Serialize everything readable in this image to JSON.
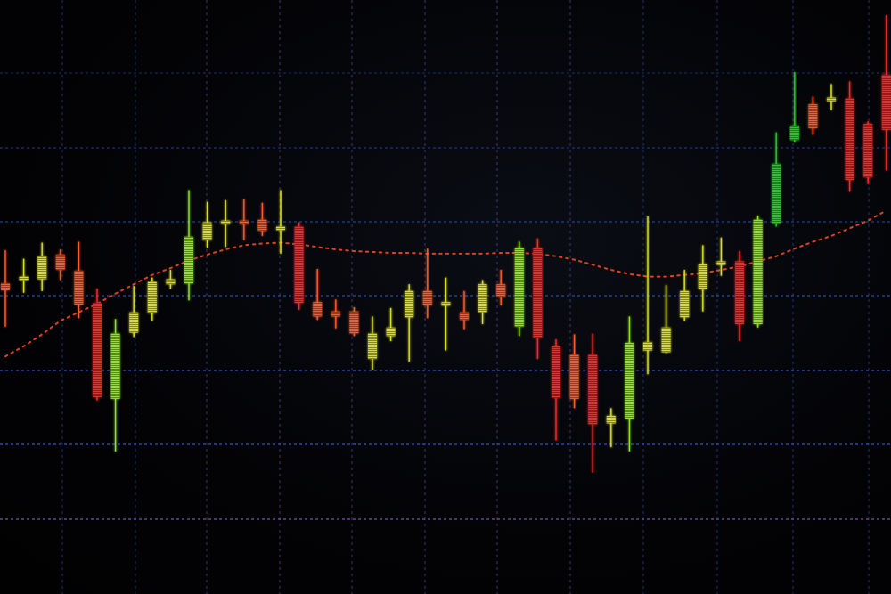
{
  "chart_data": {
    "type": "candlestick",
    "grid": true,
    "legend": "none",
    "ylim": [
      -60,
      640
    ],
    "colors": {
      "background": "#020204",
      "grid_blue": "#2a58c8",
      "grid_purple": "#7a4fc0",
      "moving_average": "#e0401c",
      "strong_down": "#ff2626",
      "down": "#ff5a2a",
      "neutral": "#d8e020",
      "up": "#8ee61a",
      "strong_up": "#1ed21e"
    },
    "series": [
      {
        "kind": "ohlc",
        "candles": [
          {
            "x": 0,
            "open": 306,
            "close": 298,
            "high": 345,
            "low": 255
          },
          {
            "x": 1,
            "open": 311,
            "close": 314,
            "high": 335,
            "low": 295
          },
          {
            "x": 2,
            "open": 311,
            "close": 338,
            "high": 354,
            "low": 297
          },
          {
            "x": 3,
            "open": 340,
            "close": 322,
            "high": 346,
            "low": 310
          },
          {
            "x": 4,
            "open": 321,
            "close": 281,
            "high": 355,
            "low": 265
          },
          {
            "x": 5,
            "open": 283,
            "close": 172,
            "high": 300,
            "low": 168
          },
          {
            "x": 6,
            "open": 170,
            "close": 247,
            "high": 264,
            "low": 108
          },
          {
            "x": 7,
            "open": 248,
            "close": 272,
            "high": 303,
            "low": 243
          },
          {
            "x": 8,
            "open": 271,
            "close": 308,
            "high": 313,
            "low": 262
          },
          {
            "x": 9,
            "open": 305,
            "close": 311,
            "high": 322,
            "low": 300
          },
          {
            "x": 10,
            "open": 306,
            "close": 361,
            "high": 416,
            "low": 286
          },
          {
            "x": 11,
            "open": 357,
            "close": 378,
            "high": 402,
            "low": 348
          },
          {
            "x": 12,
            "open": 378,
            "close": 380,
            "high": 404,
            "low": 349
          },
          {
            "x": 13,
            "open": 380,
            "close": 376,
            "high": 405,
            "low": 357
          },
          {
            "x": 14,
            "open": 381,
            "close": 368,
            "high": 401,
            "low": 362
          },
          {
            "x": 15,
            "open": 370,
            "close": 373,
            "high": 416,
            "low": 341
          },
          {
            "x": 16,
            "open": 373,
            "close": 283,
            "high": 378,
            "low": 275
          },
          {
            "x": 17,
            "open": 284,
            "close": 267,
            "high": 323,
            "low": 263
          },
          {
            "x": 18,
            "open": 273,
            "close": 267,
            "high": 287,
            "low": 253
          },
          {
            "x": 19,
            "open": 273,
            "close": 247,
            "high": 278,
            "low": 244
          },
          {
            "x": 20,
            "open": 217,
            "close": 247,
            "high": 267,
            "low": 204
          },
          {
            "x": 21,
            "open": 244,
            "close": 254,
            "high": 277,
            "low": 238
          },
          {
            "x": 22,
            "open": 266,
            "close": 297,
            "high": 305,
            "low": 214
          },
          {
            "x": 23,
            "open": 297,
            "close": 280,
            "high": 347,
            "low": 265
          },
          {
            "x": 24,
            "open": 284,
            "close": 283,
            "high": 313,
            "low": 227
          },
          {
            "x": 25,
            "open": 272,
            "close": 263,
            "high": 297,
            "low": 252
          },
          {
            "x": 26,
            "open": 272,
            "close": 305,
            "high": 310,
            "low": 258
          },
          {
            "x": 27,
            "open": 305,
            "close": 290,
            "high": 322,
            "low": 280
          },
          {
            "x": 28,
            "open": 255,
            "close": 348,
            "high": 355,
            "low": 244
          },
          {
            "x": 29,
            "open": 348,
            "close": 242,
            "high": 359,
            "low": 217
          },
          {
            "x": 30,
            "open": 232,
            "close": 171,
            "high": 240,
            "low": 121
          },
          {
            "x": 31,
            "open": 222,
            "close": 170,
            "high": 246,
            "low": 159
          },
          {
            "x": 32,
            "open": 222,
            "close": 140,
            "high": 247,
            "low": 83
          },
          {
            "x": 33,
            "open": 141,
            "close": 150,
            "high": 159,
            "low": 113
          },
          {
            "x": 34,
            "open": 146,
            "close": 236,
            "high": 267,
            "low": 108
          },
          {
            "x": 35,
            "open": 227,
            "close": 237,
            "high": 385,
            "low": 199
          },
          {
            "x": 36,
            "open": 225,
            "close": 254,
            "high": 304,
            "low": 224
          },
          {
            "x": 37,
            "open": 266,
            "close": 297,
            "high": 322,
            "low": 262
          },
          {
            "x": 38,
            "open": 299,
            "close": 329,
            "high": 351,
            "low": 273
          },
          {
            "x": 39,
            "open": 330,
            "close": 332,
            "high": 360,
            "low": 315
          },
          {
            "x": 40,
            "open": 332,
            "close": 258,
            "high": 344,
            "low": 238
          },
          {
            "x": 41,
            "open": 258,
            "close": 381,
            "high": 386,
            "low": 254
          },
          {
            "x": 42,
            "open": 377,
            "close": 447,
            "high": 484,
            "low": 373
          },
          {
            "x": 43,
            "open": 475,
            "close": 492,
            "high": 555,
            "low": 472
          },
          {
            "x": 44,
            "open": 517,
            "close": 489,
            "high": 526,
            "low": 481
          },
          {
            "x": 45,
            "open": 523,
            "close": 525,
            "high": 541,
            "low": 510
          },
          {
            "x": 46,
            "open": 524,
            "close": 428,
            "high": 544,
            "low": 414
          },
          {
            "x": 47,
            "open": 494,
            "close": 431,
            "high": 497,
            "low": 423
          },
          {
            "x": 48,
            "open": 552,
            "close": 487,
            "high": 622,
            "low": 439
          }
        ]
      },
      {
        "kind": "moving_average",
        "values": [
          220,
          232,
          246,
          262,
          272,
          282,
          294,
          305,
          316,
          324,
          333,
          340,
          346,
          351,
          353,
          354,
          352,
          349,
          346,
          344,
          343,
          342,
          342,
          341,
          341,
          341,
          341,
          342,
          342,
          341,
          338,
          334,
          328,
          322,
          317,
          314,
          314,
          316,
          318,
          322,
          326,
          332,
          338,
          347,
          355,
          362,
          371,
          380,
          392
        ]
      }
    ]
  }
}
